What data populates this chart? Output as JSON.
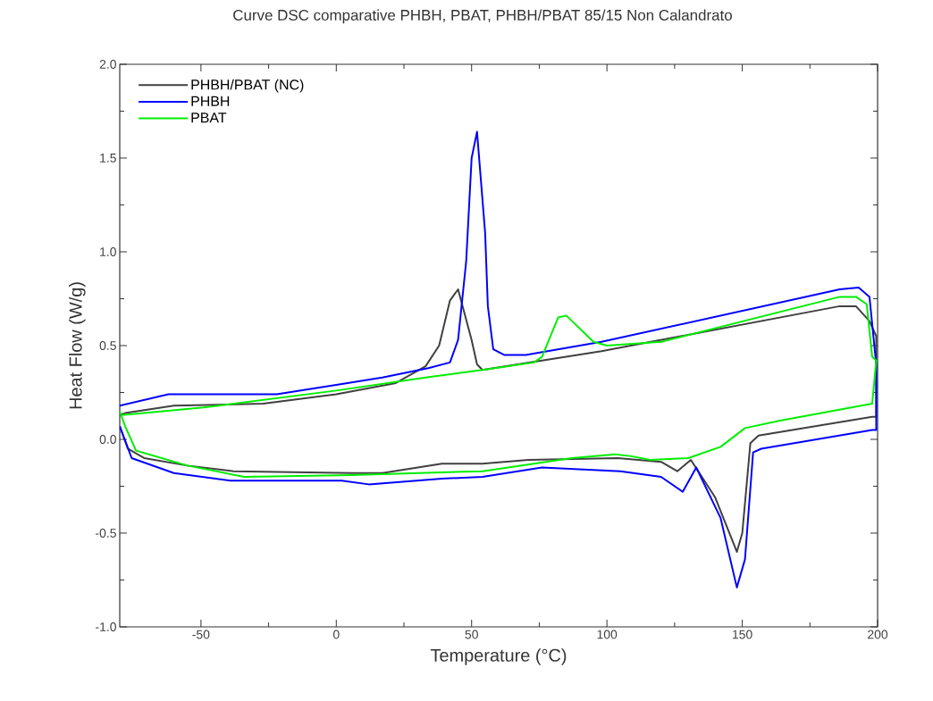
{
  "chart_data": {
    "type": "line",
    "title": "Curve DSC comparative PHBH, PBAT, PHBH/PBAT 85/15 Non Calandrato",
    "xlabel": "Temperature (°C)",
    "ylabel": "Heat Flow (W/g)",
    "xlim": [
      -80,
      200
    ],
    "ylim": [
      -1.0,
      2.0
    ],
    "xticks": [
      -50,
      0,
      50,
      100,
      150,
      200
    ],
    "yticks": [
      {
        "value": -1.0,
        "label": "-1.0"
      },
      {
        "value": -0.5,
        "label": "-0.5"
      },
      {
        "value": 0.0,
        "label": "0.0"
      },
      {
        "value": 0.5,
        "label": "0.5"
      },
      {
        "value": 1.0,
        "label": "1.0"
      },
      {
        "value": 1.5,
        "label": "1.5"
      },
      {
        "value": 2.0,
        "label": "2.0"
      }
    ],
    "legend": "top left",
    "grid": false,
    "marker": "none",
    "line_style": "solid",
    "series": [
      {
        "name": "PHBH/PBAT (NC)",
        "color": "#404040",
        "x": [
          -80,
          -77,
          -71,
          -55,
          -38,
          6,
          17,
          39,
          54,
          71,
          104,
          120,
          126,
          131,
          140,
          148,
          150,
          153,
          156,
          198,
          199.5,
          199.5,
          197,
          192,
          186,
          98,
          54,
          52,
          50,
          45,
          42,
          38,
          33,
          22,
          0,
          -27,
          -60,
          -78,
          -80
        ],
        "values": [
          0.07,
          -0.05,
          -0.1,
          -0.14,
          -0.17,
          -0.18,
          -0.18,
          -0.13,
          -0.13,
          -0.11,
          -0.1,
          -0.12,
          -0.17,
          -0.11,
          -0.31,
          -0.6,
          -0.5,
          -0.02,
          0.02,
          0.12,
          0.12,
          0.55,
          0.63,
          0.71,
          0.71,
          0.47,
          0.37,
          0.4,
          0.53,
          0.8,
          0.74,
          0.5,
          0.39,
          0.3,
          0.24,
          0.19,
          0.18,
          0.14,
          0.13
        ]
      },
      {
        "name": "PHBH",
        "color": "#0000ff",
        "x": [
          -80,
          -75.6,
          -60,
          -39,
          2,
          12,
          39,
          54,
          76,
          105,
          120,
          128,
          133,
          142,
          148,
          151,
          154,
          157,
          198,
          199.5,
          199.5,
          199,
          197,
          193,
          186,
          98,
          70,
          62,
          58,
          56,
          55,
          52,
          50,
          48,
          45,
          42,
          34,
          17,
          0,
          -22,
          -54,
          -62,
          -80
        ],
        "values": [
          0.07,
          -0.1,
          -0.18,
          -0.22,
          -0.22,
          -0.24,
          -0.21,
          -0.2,
          -0.15,
          -0.17,
          -0.2,
          -0.28,
          -0.15,
          -0.42,
          -0.79,
          -0.64,
          -0.07,
          -0.05,
          0.05,
          0.05,
          0.4,
          0.47,
          0.76,
          0.81,
          0.8,
          0.52,
          0.45,
          0.45,
          0.48,
          0.71,
          1.1,
          1.64,
          1.5,
          0.95,
          0.53,
          0.41,
          0.38,
          0.33,
          0.29,
          0.24,
          0.24,
          0.24,
          0.18
        ]
      },
      {
        "name": "PBAT",
        "color": "#00ee00",
        "x": [
          -80,
          -78,
          -74,
          -55,
          -34,
          6,
          54,
          87,
          103,
          109,
          116,
          130,
          142,
          151,
          164,
          198,
          199.5,
          198,
          196,
          192,
          186,
          120,
          100,
          95,
          85,
          82,
          76,
          73,
          54,
          33,
          0,
          -49,
          -79
        ],
        "values": [
          0.15,
          0.07,
          -0.06,
          -0.14,
          -0.2,
          -0.19,
          -0.17,
          -0.1,
          -0.08,
          -0.09,
          -0.11,
          -0.1,
          -0.04,
          0.06,
          0.1,
          0.19,
          0.42,
          0.44,
          0.72,
          0.76,
          0.76,
          0.52,
          0.5,
          0.52,
          0.66,
          0.65,
          0.44,
          0.41,
          0.37,
          0.33,
          0.26,
          0.17,
          0.13
        ]
      }
    ]
  }
}
